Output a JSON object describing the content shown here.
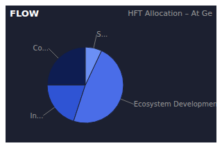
{
  "chart_data": {
    "type": "pie",
    "title": "HFT Allocation – At Ge",
    "annotations": [
      "FLOW"
    ],
    "categories": [
      "Co...",
      "In...",
      "Ecosystem Development",
      "S..."
    ],
    "values": [
      25,
      20,
      48,
      7
    ],
    "colors": [
      "#0e1d52",
      "#2f54d4",
      "#4a6de8",
      "#6b8ff5"
    ]
  }
}
